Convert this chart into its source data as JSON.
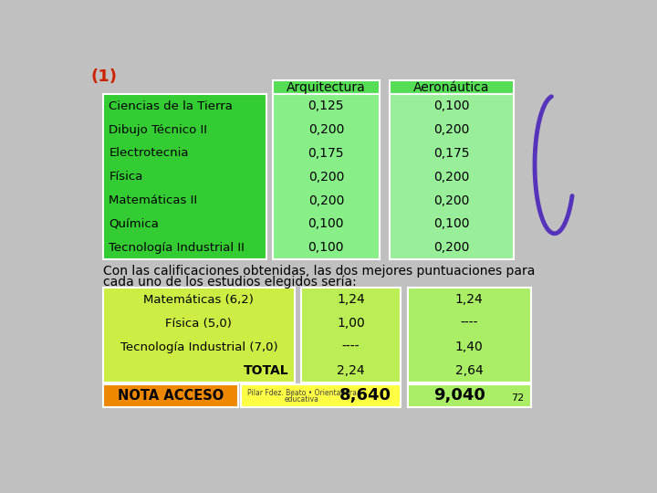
{
  "title": "(1)",
  "header_row": [
    "",
    "Arquitectura",
    "Aeronáutica"
  ],
  "subjects": [
    "Ciencias de la Tierra",
    "Dibujo Técnico II",
    "Electrotecnia",
    "Física",
    "Matemáticas II",
    "Química",
    "Tecnología Industrial II"
  ],
  "arq_weights": [
    "0,125",
    "0,200",
    "0,175",
    "0,200",
    "0,200",
    "0,100",
    "0,100"
  ],
  "aero_weights": [
    "0,100",
    "0,200",
    "0,175",
    "0,200",
    "0,200",
    "0,100",
    "0,200"
  ],
  "summary_text_line1": "Con las calificaciones obtenidas, las dos mejores puntuaciones para",
  "summary_text_line2": "cada uno de los estudios elegidos sería:",
  "summary_rows": [
    [
      "Matemáticas (6,2)",
      "1,24",
      "1,24"
    ],
    [
      "Física (5,0)",
      "1,00",
      "----"
    ],
    [
      "Tecnología Industrial (7,0)",
      "----",
      "1,40"
    ],
    [
      "TOTAL",
      "2,24",
      "2,64"
    ]
  ],
  "nota_label": "NOTA ACCESO",
  "nota_arq": "8,640",
  "nota_aero": "9,040",
  "watermark_line1": "Pilar Fdez. Beato • Orientadora",
  "watermark_line2": "educativa",
  "slide_num": "72",
  "bg_color": "#c0c0c0",
  "green_subject_bg": "#33cc33",
  "green_header_bg": "#55dd55",
  "green_weight_bg": "#88ee88",
  "green_aero_weight_bg": "#99ee99",
  "yellow_left_bg": "#ccee44",
  "yellow_arq_nota": "#ffff44",
  "green_aero_nota": "#aaee66",
  "green_btable_right": "#aaee66",
  "orange_nota": "#ee8800",
  "title_color": "#cc2200",
  "purple_color": "#5533bb"
}
